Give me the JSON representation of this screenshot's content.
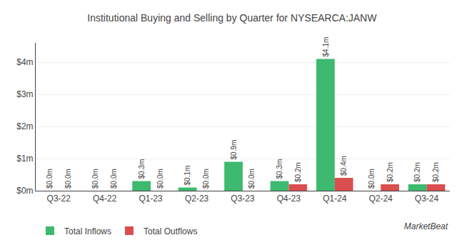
{
  "chart_data": {
    "type": "bar",
    "title": "Institutional Buying and Selling by Quarter for NYSEARCA:JANW",
    "categories": [
      "Q3-22",
      "Q4-22",
      "Q1-23",
      "Q2-23",
      "Q3-23",
      "Q4-23",
      "Q1-24",
      "Q2-24",
      "Q3-24"
    ],
    "series": [
      {
        "name": "Total Inflows",
        "color": "#3dba6f",
        "values": [
          0.0,
          0.0,
          0.3,
          0.1,
          0.9,
          0.3,
          4.1,
          0.0,
          0.2
        ],
        "value_labels": [
          "$0.0m",
          "$0.0m",
          "$0.3m",
          "$0.1m",
          "$0.9m",
          "$0.3m",
          "$4.1m",
          "$0.0m",
          "$0.2m"
        ]
      },
      {
        "name": "Total Outflows",
        "color": "#d94f4f",
        "values": [
          0.0,
          0.0,
          0.0,
          0.0,
          0.0,
          0.2,
          0.4,
          0.2,
          0.2
        ],
        "value_labels": [
          "$0.0m",
          "$0.0m",
          "$0.0m",
          "$0.0m",
          "$0.0m",
          "$0.2m",
          "$0.4m",
          "$0.2m",
          "$0.2m"
        ]
      }
    ],
    "ylim": [
      0,
      4.6
    ],
    "yticks": [
      {
        "value": 0,
        "label": "$0m"
      },
      {
        "value": 1,
        "label": "$1m"
      },
      {
        "value": 2,
        "label": "$2m"
      },
      {
        "value": 3,
        "label": "$3m"
      },
      {
        "value": 4,
        "label": "$4m"
      }
    ],
    "grid": true,
    "legend": "lower left",
    "data_labels": true,
    "annotations": [
      "MarketBeat"
    ]
  }
}
